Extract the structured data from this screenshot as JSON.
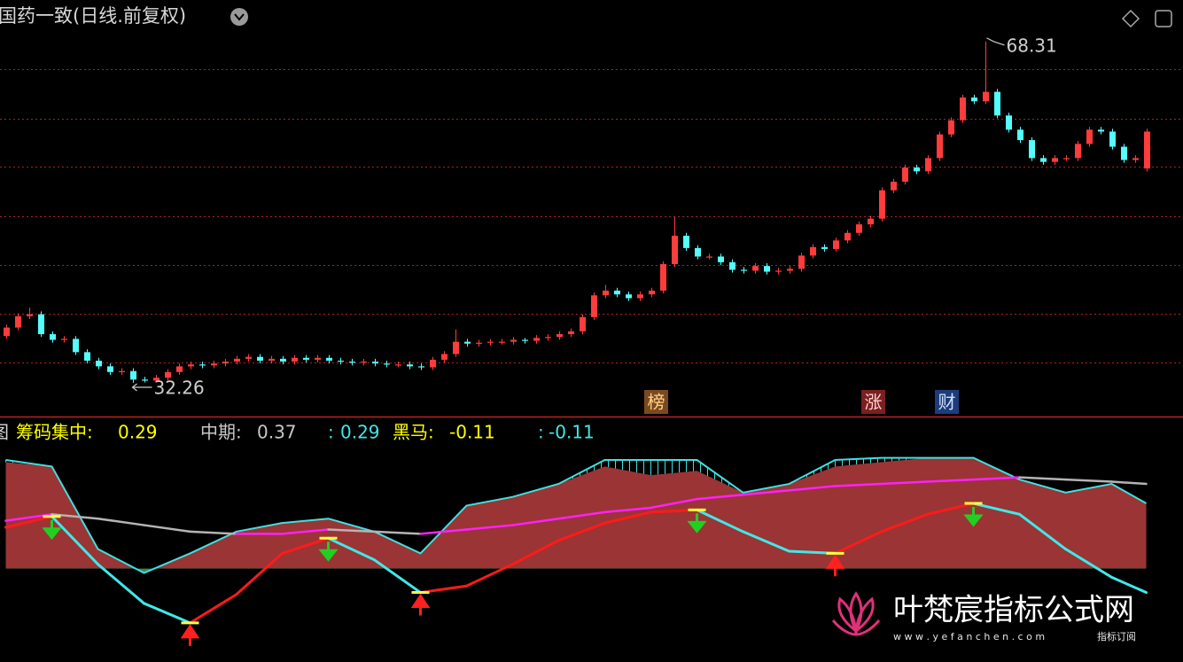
{
  "header": {
    "title": "国药一致(日线.前复权)"
  },
  "badges": [
    "榜",
    "涨",
    "财"
  ],
  "watermark": {
    "name": "叶梵宸指标公式网",
    "url": "w w w . y e f a n c h e n . c o m",
    "tag": "指标订阅"
  },
  "chart_data": [
    {
      "type": "candlestick",
      "open": [
        37.2,
        38.1,
        39.3,
        39.5,
        37.4,
        36.8,
        36.9,
        35.5,
        34.6,
        34.0,
        33.4,
        33.5,
        32.6,
        32.5,
        32.8,
        33.4,
        34.0,
        34.2,
        34.1,
        34.3,
        34.5,
        34.8,
        35.0,
        34.6,
        34.8,
        34.5,
        34.9,
        34.7,
        34.9,
        34.6,
        34.5,
        34.4,
        34.5,
        34.3,
        34.2,
        34.2,
        34.0,
        33.9,
        34.7,
        35.3,
        36.6,
        36.4,
        36.5,
        36.6,
        36.6,
        36.8,
        36.7,
        37.0,
        37.1,
        37.4,
        37.7,
        39.2,
        41.5,
        42.0,
        41.6,
        41.2,
        41.6,
        42.0,
        44.8,
        47.8,
        46.5,
        45.6,
        45.6,
        45.0,
        44.2,
        44.1,
        44.6,
        44.0,
        44.1,
        44.3,
        45.7,
        46.6,
        46.4,
        47.3,
        48.1,
        49.0,
        49.6,
        52.6,
        53.5,
        55.0,
        54.6,
        56.0,
        58.5,
        60.0,
        62.4,
        62.0,
        63.0,
        60.5,
        59.0,
        57.9,
        56.0,
        55.6,
        56.0,
        56.0,
        57.5,
        59.0,
        58.8,
        57.2,
        55.8,
        54.9
      ],
      "high": [
        38.4,
        39.6,
        40.2,
        39.8,
        37.7,
        37.2,
        37.2,
        35.8,
        34.9,
        34.3,
        33.8,
        33.8,
        32.9,
        33.1,
        33.7,
        34.3,
        34.5,
        34.5,
        34.6,
        34.8,
        35.1,
        35.3,
        35.3,
        35.1,
        35.1,
        35.2,
        35.2,
        35.2,
        35.2,
        34.9,
        34.8,
        34.8,
        34.8,
        34.6,
        34.5,
        34.5,
        34.3,
        35.0,
        35.6,
        37.9,
        36.9,
        36.8,
        36.9,
        36.9,
        37.1,
        37.0,
        37.3,
        37.4,
        37.7,
        38.0,
        39.5,
        41.8,
        42.6,
        42.3,
        41.9,
        41.9,
        42.3,
        45.1,
        49.8,
        48.1,
        46.8,
        45.9,
        45.9,
        45.3,
        44.5,
        44.9,
        44.9,
        44.4,
        44.6,
        46.0,
        46.9,
        46.9,
        47.6,
        48.4,
        49.3,
        49.9,
        52.9,
        53.8,
        55.3,
        55.3,
        56.3,
        58.8,
        60.3,
        62.7,
        62.7,
        68.31,
        63.3,
        60.8,
        59.3,
        58.2,
        56.3,
        56.3,
        56.3,
        57.8,
        59.3,
        59.3,
        59.1,
        57.5,
        56.3,
        59.1
      ],
      "low": [
        36.9,
        37.8,
        39.0,
        37.1,
        36.5,
        36.5,
        35.2,
        34.3,
        33.7,
        33.1,
        33.1,
        32.26,
        32.3,
        32.3,
        32.5,
        33.1,
        33.7,
        33.8,
        33.8,
        34.0,
        34.2,
        34.5,
        34.3,
        34.3,
        34.2,
        34.2,
        34.4,
        34.4,
        34.3,
        34.2,
        34.1,
        34.1,
        34.0,
        33.9,
        33.9,
        33.7,
        33.6,
        33.6,
        34.4,
        35.0,
        36.1,
        36.1,
        36.2,
        36.3,
        36.3,
        36.4,
        36.4,
        36.7,
        36.8,
        37.1,
        37.4,
        38.9,
        41.2,
        41.3,
        40.9,
        40.9,
        41.3,
        41.7,
        44.5,
        46.2,
        45.3,
        45.3,
        44.7,
        43.9,
        43.8,
        43.8,
        43.7,
        43.7,
        43.8,
        44.0,
        45.4,
        46.1,
        46.1,
        47.0,
        47.8,
        48.7,
        49.3,
        52.3,
        53.2,
        54.3,
        54.3,
        55.7,
        58.2,
        59.7,
        61.7,
        61.7,
        60.2,
        58.7,
        57.6,
        55.7,
        55.3,
        55.3,
        55.7,
        55.7,
        57.2,
        58.5,
        56.9,
        55.5,
        55.5,
        54.6
      ],
      "close": [
        38.1,
        39.3,
        39.5,
        37.4,
        36.8,
        36.9,
        35.5,
        34.6,
        34.0,
        33.4,
        33.5,
        32.6,
        32.5,
        32.8,
        33.4,
        34.0,
        34.2,
        34.1,
        34.3,
        34.5,
        34.8,
        35.0,
        34.6,
        34.8,
        34.5,
        34.9,
        34.7,
        34.9,
        34.6,
        34.5,
        34.4,
        34.5,
        34.3,
        34.2,
        34.2,
        34.0,
        33.9,
        34.7,
        35.3,
        36.6,
        36.4,
        36.5,
        36.6,
        36.6,
        36.8,
        36.7,
        37.0,
        37.1,
        37.4,
        37.7,
        39.2,
        41.5,
        42.0,
        41.6,
        41.2,
        41.6,
        42.0,
        44.8,
        47.8,
        46.5,
        45.6,
        45.6,
        45.0,
        44.2,
        44.1,
        44.6,
        44.0,
        44.1,
        44.3,
        45.7,
        46.6,
        46.4,
        47.3,
        48.1,
        49.0,
        49.6,
        52.6,
        53.5,
        55.0,
        54.6,
        56.0,
        58.5,
        60.0,
        62.4,
        62.0,
        63.0,
        60.5,
        59.0,
        57.9,
        56.0,
        55.6,
        56.0,
        56.0,
        57.5,
        59.0,
        58.8,
        57.2,
        55.8,
        56.0,
        58.8
      ],
      "up_color": "#ff3c3c",
      "down_color": "#54fcfc",
      "high_label": 68.31,
      "low_label": 32.26,
      "ylim": [
        28.7,
        72.7
      ],
      "ygrid": [
        65.4,
        60.2,
        55.1,
        49.9,
        44.7,
        39.6,
        34.4
      ],
      "grid": true,
      "grid_color": "#b02020"
    },
    {
      "type": "line",
      "panel_label": "图",
      "x": [
        0,
        4,
        8,
        12,
        16,
        20,
        24,
        28,
        32,
        36,
        40,
        44,
        48,
        52,
        56,
        60,
        64,
        68,
        72,
        76,
        80,
        84,
        88,
        92,
        96,
        99
      ],
      "ylim": [
        -0.43,
        0.7
      ],
      "legend": [
        {
          "name": "筹码集中:",
          "value": 0.29,
          "color": "#ffff00"
        },
        {
          "name": "中期:",
          "value": 0.37,
          "color": "#c8c8c8"
        },
        {
          "name": ":",
          "value": 0.29,
          "color": "#40e8e8"
        },
        {
          "name": "黑马:",
          "value": -0.11,
          "color": "#ffff00"
        },
        {
          "name": ":",
          "value": -0.11,
          "color": "#40e8e8"
        }
      ],
      "series": [
        {
          "style": "area",
          "color": "#9b3434",
          "negative_color": "#3c8a4a",
          "values": [
            0.49,
            0.47,
            0.09,
            -0.02,
            0.07,
            0.17,
            0.21,
            0.23,
            0.17,
            0.07,
            0.29,
            0.33,
            0.39,
            0.47,
            0.43,
            0.45,
            0.35,
            0.39,
            0.47,
            0.49,
            0.51,
            0.51,
            0.41,
            0.35,
            0.39,
            0.3
          ]
        },
        {
          "style": "hatch",
          "color": "#40e0e0",
          "values": [
            0.5,
            0.47,
            0.09,
            -0.02,
            0.07,
            0.17,
            0.21,
            0.23,
            0.17,
            0.07,
            0.29,
            0.33,
            0.39,
            0.5,
            0.5,
            0.5,
            0.35,
            0.39,
            0.5,
            0.51,
            0.51,
            0.51,
            0.41,
            0.35,
            0.39,
            0.3
          ]
        },
        {
          "style": "slope",
          "rise_color": "#ff20ff",
          "fall_color": "#b4b4b4",
          "values": [
            0.22,
            0.25,
            0.23,
            0.2,
            0.17,
            0.16,
            0.16,
            0.18,
            0.17,
            0.16,
            0.18,
            0.2,
            0.23,
            0.26,
            0.28,
            0.32,
            0.34,
            0.36,
            0.38,
            0.39,
            0.4,
            0.41,
            0.42,
            0.41,
            0.4,
            0.39
          ]
        },
        {
          "style": "signal",
          "rise_color": "#ff1a1a",
          "fall_color": "#40e8e8",
          "mark_color": "#ffff40",
          "buy_color": "#ff2020",
          "sell_color": "#20d020",
          "values": [
            0.19,
            0.24,
            0.02,
            -0.16,
            -0.25,
            -0.12,
            0.07,
            0.14,
            0.04,
            -0.11,
            -0.08,
            0.02,
            0.13,
            0.21,
            0.26,
            0.27,
            0.17,
            0.08,
            0.07,
            0.17,
            0.25,
            0.3,
            0.25,
            0.09,
            -0.04,
            -0.11
          ]
        }
      ]
    }
  ]
}
